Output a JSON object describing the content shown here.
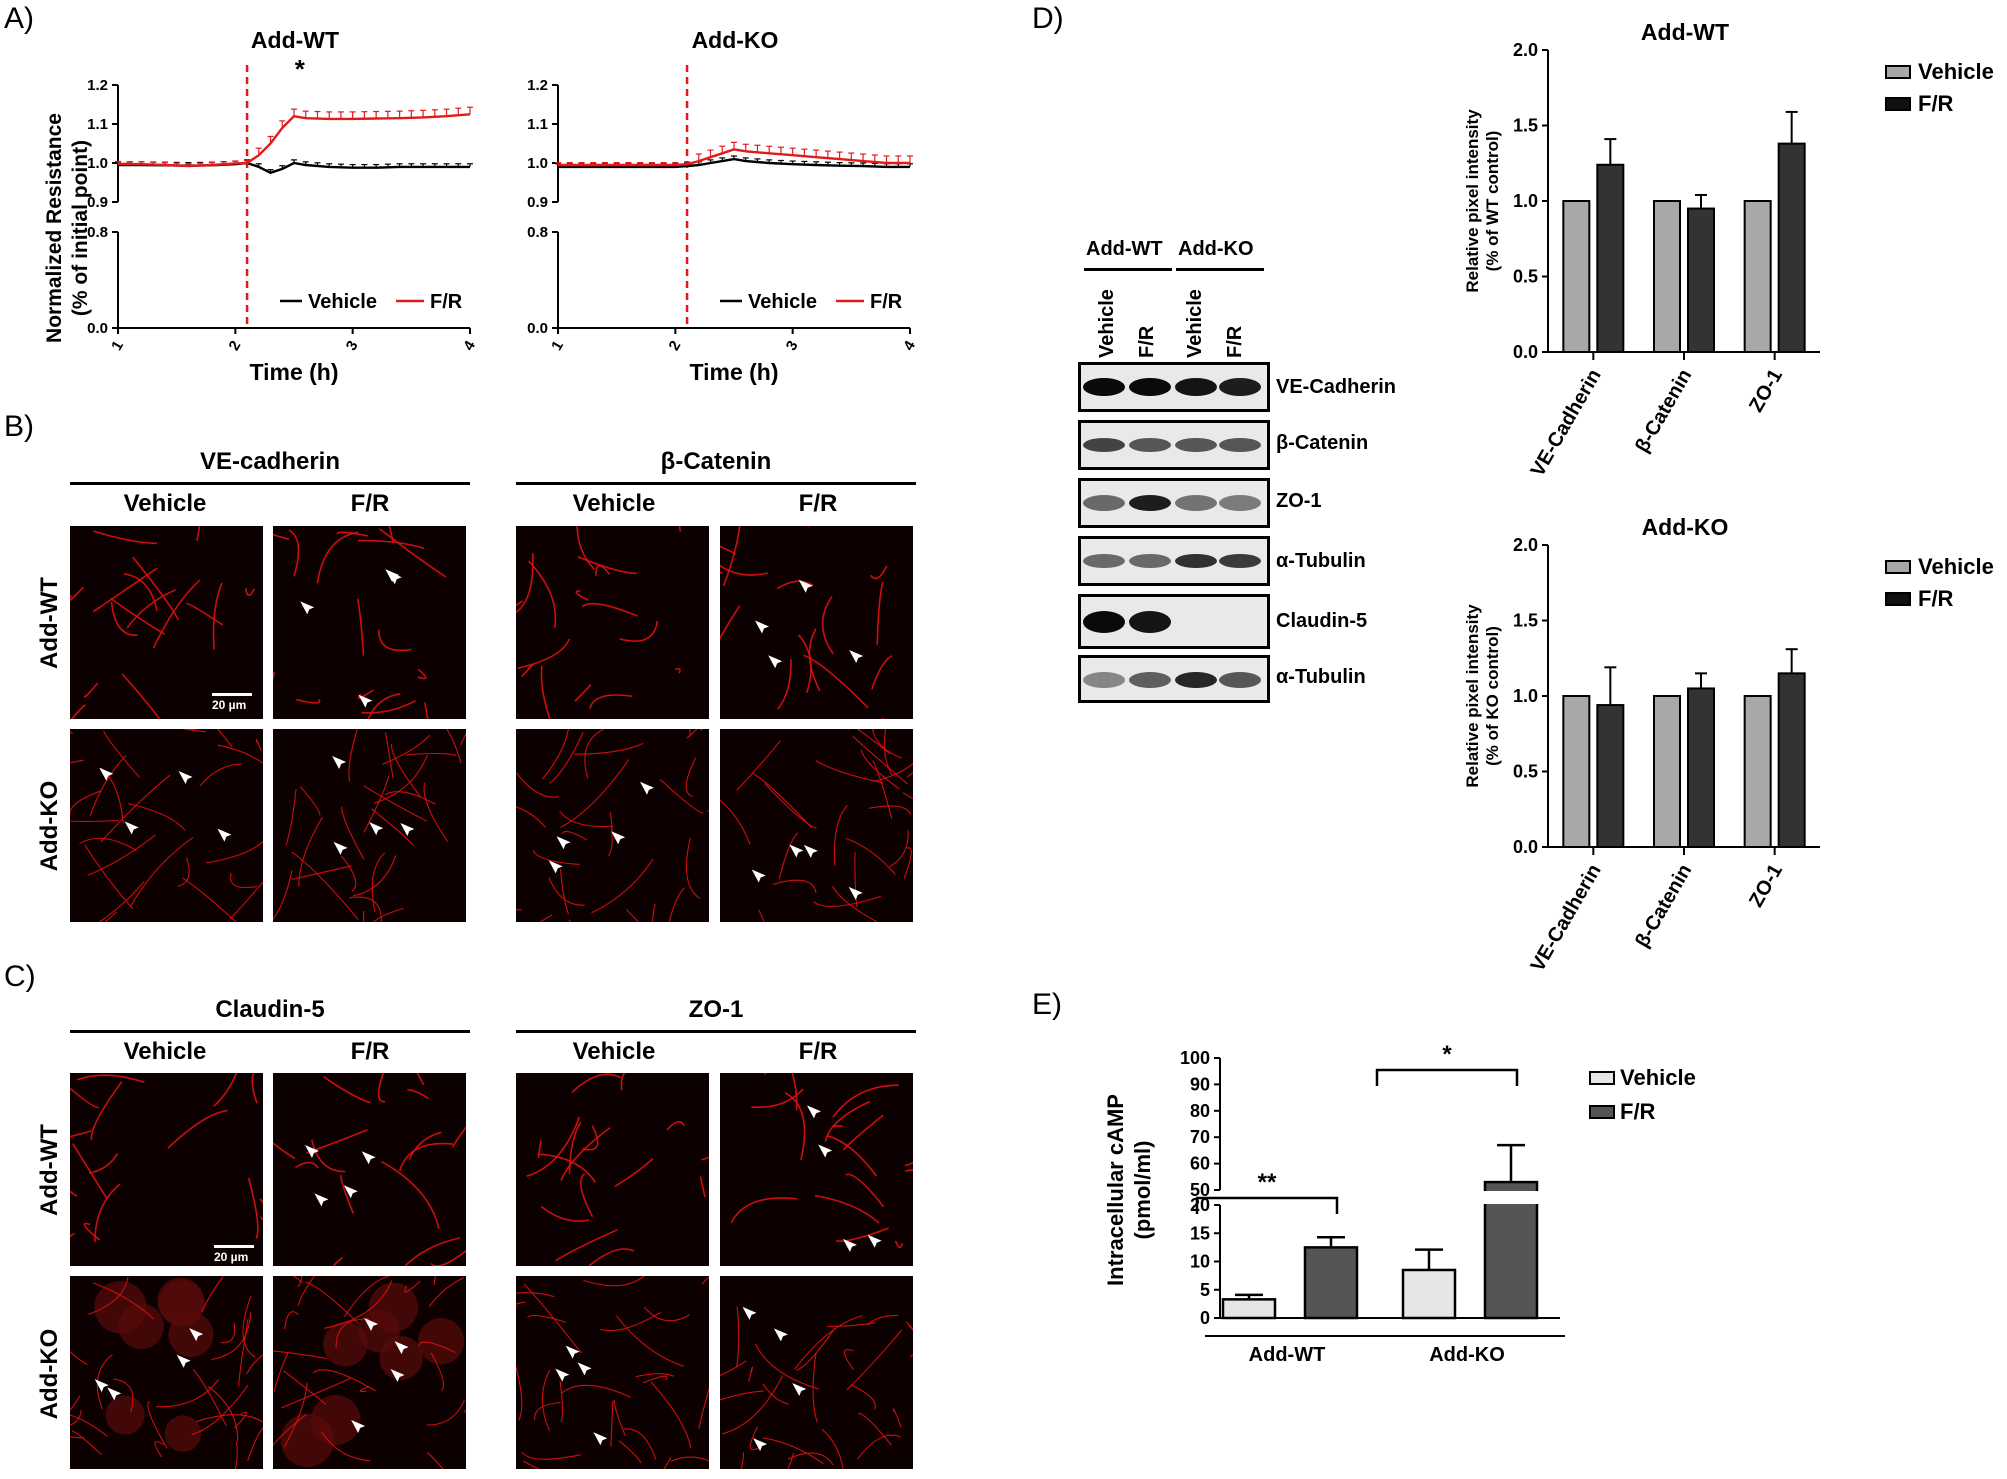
{
  "panels": {
    "A": "A)",
    "B": "B)",
    "C": "C)",
    "D": "D)",
    "E": "E)"
  },
  "panelA": {
    "ylabel_line1": "Normalized Resistance",
    "ylabel_line2": "(% of initial point)",
    "charts": [
      {
        "title": "Add-WT",
        "xlabel": "Time (h)",
        "star": "*",
        "yticks": [
          "1.2",
          "1.1",
          "1.0",
          "0.9",
          "0.8",
          "0.0"
        ],
        "xticks": [
          "1",
          "2",
          "3",
          "4"
        ],
        "legend": [
          "Vehicle",
          "F/R"
        ]
      },
      {
        "title": "Add-KO",
        "xlabel": "Time (h)",
        "yticks": [
          "1.2",
          "1.1",
          "1.0",
          "0.9",
          "0.8",
          "0.0"
        ],
        "xticks": [
          "1",
          "2",
          "3",
          "4"
        ],
        "legend": [
          "Vehicle",
          "F/R"
        ]
      }
    ]
  },
  "panelB": {
    "markers": [
      "VE-cadherin",
      "β-Catenin"
    ],
    "conditions": [
      "Vehicle",
      "F/R"
    ],
    "rows": [
      "Add-WT",
      "Add-KO"
    ],
    "scale": "20 µm"
  },
  "panelC": {
    "markers": [
      "Claudin-5",
      "ZO-1"
    ],
    "conditions": [
      "Vehicle",
      "F/R"
    ],
    "rows": [
      "Add-WT",
      "Add-KO"
    ],
    "scale": "20 µm"
  },
  "panelD": {
    "blot": {
      "groups": [
        "Add-WT",
        "Add-KO"
      ],
      "lanes": [
        "Vehicle",
        "F/R",
        "Vehicle",
        "F/R"
      ],
      "proteins": [
        "VE-Cadherin",
        "β-Catenin",
        "ZO-1",
        "α-Tubulin",
        "Claudin-5",
        "α-Tubulin"
      ]
    },
    "legend": [
      "Vehicle",
      "F/R"
    ]
  },
  "colors": {
    "wt_line": "#e31a1c",
    "vehicle_line": "#000000",
    "bar_light": "#a8a8a8",
    "bar_dark": "#333333",
    "bar_e_light": "#e6e6e6",
    "bar_e_dark": "#555555"
  },
  "chart_data": [
    {
      "type": "line",
      "title": "Add-WT",
      "xlabel": "Time (h)",
      "ylabel": "Normalized Resistance (% of initial point)",
      "xlim": [
        1,
        4
      ],
      "ylim": [
        0.0,
        1.2
      ],
      "axis_break": [
        0.8,
        0.9
      ],
      "marker_line_x": 2.1,
      "x": [
        1.0,
        1.2,
        1.4,
        1.6,
        1.8,
        2.0,
        2.1,
        2.2,
        2.3,
        2.4,
        2.5,
        2.6,
        2.8,
        3.0,
        3.2,
        3.4,
        3.6,
        3.8,
        4.0
      ],
      "series": [
        {
          "name": "Vehicle",
          "values": [
            0.995,
            0.995,
            0.994,
            0.993,
            0.994,
            0.997,
            1.0,
            0.99,
            0.975,
            0.985,
            1.0,
            0.995,
            0.99,
            0.988,
            0.988,
            0.99,
            0.99,
            0.99,
            0.99
          ]
        },
        {
          "name": "F/R",
          "values": [
            0.998,
            0.997,
            0.995,
            0.992,
            0.995,
            0.999,
            1.0,
            1.02,
            1.05,
            1.09,
            1.12,
            1.115,
            1.113,
            1.113,
            1.114,
            1.115,
            1.117,
            1.12,
            1.125
          ]
        }
      ],
      "annotations": [
        "*"
      ]
    },
    {
      "type": "line",
      "title": "Add-KO",
      "xlabel": "Time (h)",
      "ylabel": "Normalized Resistance (% of initial point)",
      "xlim": [
        1,
        4
      ],
      "ylim": [
        0.0,
        1.2
      ],
      "axis_break": [
        0.8,
        0.9
      ],
      "marker_line_x": 2.1,
      "x": [
        1.0,
        1.2,
        1.4,
        1.6,
        1.8,
        2.0,
        2.1,
        2.2,
        2.3,
        2.4,
        2.5,
        2.6,
        2.8,
        3.0,
        3.2,
        3.4,
        3.6,
        3.8,
        4.0
      ],
      "series": [
        {
          "name": "Vehicle",
          "values": [
            0.99,
            0.99,
            0.99,
            0.99,
            0.99,
            0.99,
            0.992,
            0.995,
            1.0,
            1.005,
            1.01,
            1.005,
            1.0,
            0.997,
            0.995,
            0.993,
            0.992,
            0.99,
            0.99
          ]
        },
        {
          "name": "F/R",
          "values": [
            0.995,
            0.995,
            0.995,
            0.995,
            0.995,
            0.995,
            0.997,
            1.005,
            1.015,
            1.025,
            1.035,
            1.03,
            1.025,
            1.02,
            1.015,
            1.01,
            1.005,
            1.0,
            1.0
          ]
        }
      ]
    },
    {
      "type": "bar",
      "title": "Add-WT",
      "ylabel": "Relative pixel intensity (% of WT control)",
      "ylim": [
        0.0,
        2.0
      ],
      "yticks": [
        "2.0",
        "1.5",
        "1.0",
        "0.5",
        "0.0"
      ],
      "categories": [
        "VE-Cadherin",
        "β-Catenin",
        "ZO-1"
      ],
      "series": [
        {
          "name": "Vehicle",
          "values": [
            1.0,
            1.0,
            1.0
          ],
          "errors": [
            0,
            0,
            0
          ]
        },
        {
          "name": "F/R",
          "values": [
            1.24,
            0.95,
            1.38
          ],
          "errors": [
            0.17,
            0.09,
            0.21
          ]
        }
      ]
    },
    {
      "type": "bar",
      "title": "Add-KO",
      "ylabel": "Relative pixel intensity (% of KO control)",
      "ylim": [
        0.0,
        2.0
      ],
      "yticks": [
        "2.0",
        "1.5",
        "1.0",
        "0.5",
        "0.0"
      ],
      "categories": [
        "VE-Cadherin",
        "β-Catenin",
        "ZO-1"
      ],
      "series": [
        {
          "name": "Vehicle",
          "values": [
            1.0,
            1.0,
            1.0
          ],
          "errors": [
            0,
            0,
            0
          ]
        },
        {
          "name": "F/R",
          "values": [
            0.94,
            1.05,
            1.15
          ],
          "errors": [
            0.25,
            0.1,
            0.16
          ]
        }
      ]
    },
    {
      "type": "bar",
      "title": "",
      "ylabel": "Intracellular cAMP (pmol/ml)",
      "ylim": [
        0,
        100
      ],
      "axis_break": [
        20,
        50
      ],
      "yticks": [
        "100",
        "90",
        "80",
        "70",
        "60",
        "50",
        "20",
        "15",
        "10",
        "5",
        "0"
      ],
      "categories": [
        "Add-WT",
        "Add-KO"
      ],
      "series": [
        {
          "name": "Vehicle",
          "values": [
            3.3,
            8.5
          ],
          "errors": [
            0.8,
            3.6
          ]
        },
        {
          "name": "F/R",
          "values": [
            12.5,
            53
          ],
          "errors": [
            1.8,
            14
          ]
        }
      ],
      "significance": [
        "**",
        "*"
      ]
    }
  ]
}
